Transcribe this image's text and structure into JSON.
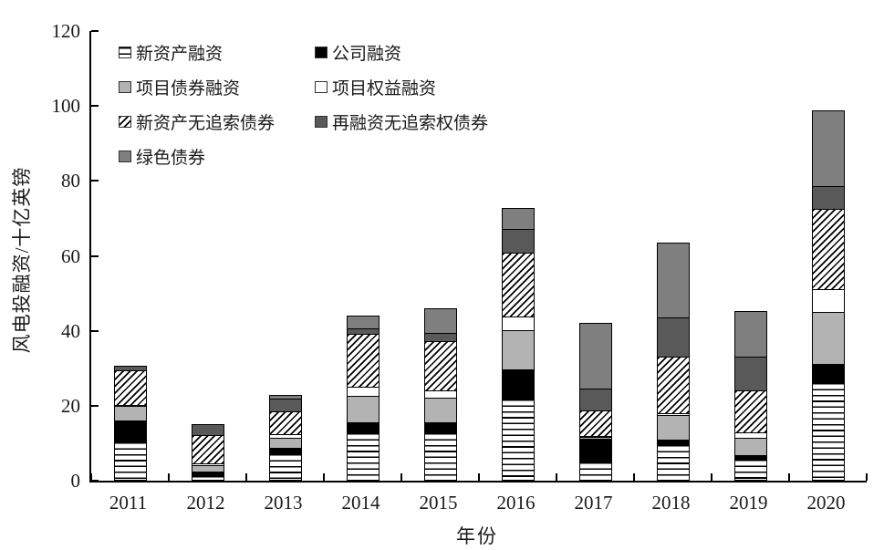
{
  "chart_data": {
    "type": "bar",
    "stacked": true,
    "title": "",
    "xlabel": "年份",
    "ylabel": "风电投融资/十亿英镑",
    "ylim": [
      0,
      120
    ],
    "ytick_step": 20,
    "ytick_labels": [
      "0",
      "20",
      "40",
      "60",
      "80",
      "100",
      "120"
    ],
    "grid": false,
    "legend_position": "top-left-inside",
    "categories": [
      "2011",
      "2012",
      "2013",
      "2014",
      "2015",
      "2016",
      "2017",
      "2018",
      "2019",
      "2020"
    ],
    "series": [
      {
        "name": "新资产融资",
        "pattern": "lines",
        "values": [
          10.5,
          1.5,
          7.3,
          12.8,
          12.8,
          21.9,
          5.1,
          9.7,
          5.9,
          26.2
        ]
      },
      {
        "name": "公司融资",
        "pattern": "black",
        "values": [
          5.5,
          1.0,
          1.5,
          2.8,
          2.8,
          7.7,
          6.1,
          1.3,
          1.0,
          5.0
        ]
      },
      {
        "name": "项目债券融资",
        "pattern": "lightgray",
        "values": [
          4.2,
          1.9,
          3.0,
          7.3,
          6.9,
          10.8,
          0.8,
          6.8,
          4.9,
          14.0
        ]
      },
      {
        "name": "项目权益融资",
        "pattern": "white",
        "values": [
          0.4,
          0.7,
          1.0,
          2.6,
          2.0,
          3.8,
          0.4,
          0.8,
          1.5,
          6.5
        ]
      },
      {
        "name": "新资产无追索债券",
        "pattern": "hatch",
        "values": [
          9.4,
          7.9,
          6.5,
          14.5,
          13.4,
          17.5,
          7.0,
          15.2,
          11.5,
          21.5
        ]
      },
      {
        "name": "再融资无追索权债券",
        "pattern": "darkgray",
        "values": [
          1.5,
          3.0,
          3.5,
          1.6,
          2.4,
          6.4,
          6.0,
          10.8,
          9.4,
          6.3
        ]
      },
      {
        "name": "绿色债券",
        "pattern": "mediumgray",
        "values": [
          0,
          0,
          1.4,
          3.7,
          6.9,
          5.8,
          17.9,
          20.2,
          12.3,
          20.6
        ]
      }
    ],
    "totals": [
      31.5,
      16.0,
      24.2,
      45.3,
      47.2,
      73.9,
      43.3,
      64.8,
      46.5,
      100.1
    ]
  },
  "legend": {
    "col1": [
      {
        "label": "新资产融资",
        "swatch": "lines"
      },
      {
        "label": "项目债券融资",
        "swatch": "lightgray"
      },
      {
        "label": "新资产无追索债券",
        "swatch": "hatch"
      },
      {
        "label": "绿色债券",
        "swatch": "mediumgray"
      }
    ],
    "col2": [
      {
        "label": "公司融资",
        "swatch": "black"
      },
      {
        "label": "项目权益融资",
        "swatch": "white"
      },
      {
        "label": "再融资无追索权债券",
        "swatch": "darkgray"
      }
    ]
  },
  "colors": {
    "black": "#000000",
    "lightgray": "#b3b3b3",
    "white": "#ffffff",
    "darkgray": "#595959",
    "mediumgray": "#7f7f7f",
    "axis": "#000000"
  }
}
